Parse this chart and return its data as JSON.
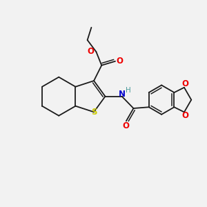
{
  "background_color": "#f2f2f2",
  "bond_color": "#1a1a1a",
  "S_color": "#cccc00",
  "N_color": "#0000cc",
  "O_color": "#ee0000",
  "H_color": "#4a9a9a",
  "figsize": [
    3.0,
    3.0
  ],
  "dpi": 100,
  "xlim": [
    0,
    10
  ],
  "ylim": [
    0,
    10
  ]
}
